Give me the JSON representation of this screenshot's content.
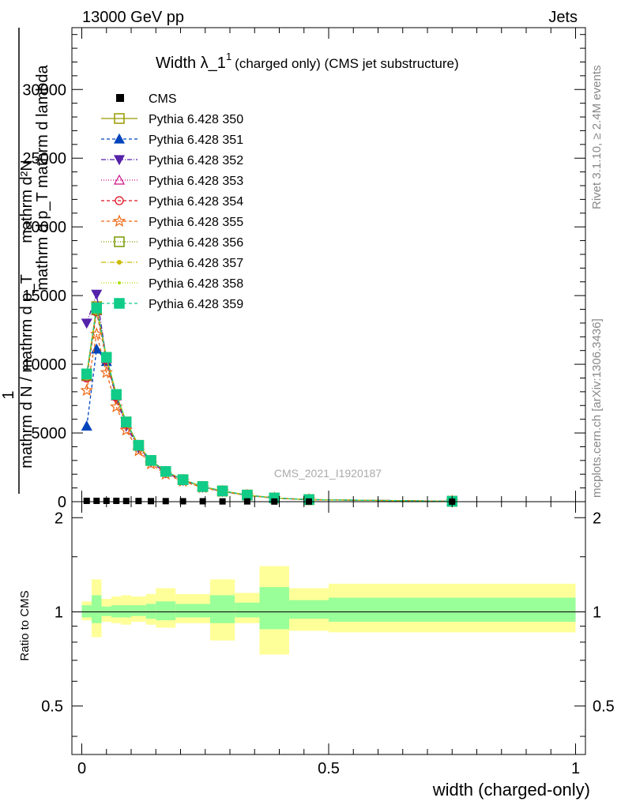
{
  "header": {
    "left": "13000 GeV pp",
    "right": "Jets"
  },
  "side_labels": {
    "rivet": "Rivet 3.1.10, ≥ 2.4M events",
    "mcplots": "mcplots.cern.ch [arXiv:1306.3436]"
  },
  "watermark": "CMS_2021_I1920187",
  "colors": {
    "band_inner": "#99ff99",
    "band_outer": "#ffff99"
  },
  "chart_data": {
    "type": "line",
    "title_main": "Width λ_1",
    "title_sup": "1",
    "title_rest": "(charged only) (CMS jet substructure)",
    "xlabel": "width (charged-only)",
    "ylabel_top": {
      "one": "1",
      "numerator": "mathrm d²N",
      "denominator": "mathrm d N / mathrm d p_T",
      "lambda": "mathrm d p_T mathrm d lambda"
    },
    "ratio_ylabel": "Ratio to CMS",
    "xlim": [
      -0.02,
      1.02
    ],
    "ylim": [
      0,
      34500
    ],
    "ratio_ylim": [
      0.35,
      2.25
    ],
    "x_ticks": [
      {
        "value": 0,
        "label": "0"
      },
      {
        "value": 0.5,
        "label": "0.5"
      },
      {
        "value": 1,
        "label": "1"
      }
    ],
    "y_ticks": [
      {
        "value": 0,
        "label": "0"
      },
      {
        "value": 5000,
        "label": "5000"
      },
      {
        "value": 10000,
        "label": "10000"
      },
      {
        "value": 15000,
        "label": "15000"
      },
      {
        "value": 20000,
        "label": "20000"
      },
      {
        "value": 25000,
        "label": "25000"
      },
      {
        "value": 30000,
        "label": "30000"
      }
    ],
    "ratio_ticks": [
      {
        "value": 0.5,
        "label": "0.5"
      },
      {
        "value": 1,
        "label": "1"
      },
      {
        "value": 2,
        "label": "2"
      }
    ],
    "legend_placement": "top-left",
    "cms": {
      "name": "CMS",
      "x": [
        0.01,
        0.03,
        0.05,
        0.07,
        0.09,
        0.115,
        0.14,
        0.17,
        0.205,
        0.245,
        0.285,
        0.335,
        0.39,
        0.46,
        0.75
      ],
      "y": [
        60,
        60,
        60,
        60,
        50,
        50,
        40,
        40,
        30,
        30,
        20,
        20,
        10,
        10,
        5
      ]
    },
    "ratio_bands": {
      "edges": [
        0,
        0.02,
        0.04,
        0.06,
        0.08,
        0.1,
        0.13,
        0.15,
        0.19,
        0.22,
        0.26,
        0.31,
        0.36,
        0.42,
        0.5,
        1.0
      ],
      "inner": [
        [
          0.96,
          1.05
        ],
        [
          0.92,
          1.13
        ],
        [
          0.97,
          1.04
        ],
        [
          0.96,
          1.05
        ],
        [
          0.96,
          1.05
        ],
        [
          0.97,
          1.05
        ],
        [
          0.95,
          1.06
        ],
        [
          0.94,
          1.08
        ],
        [
          0.96,
          1.06
        ],
        [
          0.96,
          1.06
        ],
        [
          0.92,
          1.13
        ],
        [
          0.96,
          1.07
        ],
        [
          0.88,
          1.2
        ],
        [
          0.95,
          1.09
        ],
        [
          0.93,
          1.11
        ]
      ],
      "outer": [
        [
          0.94,
          1.08
        ],
        [
          0.83,
          1.27
        ],
        [
          0.93,
          1.1
        ],
        [
          0.92,
          1.12
        ],
        [
          0.91,
          1.13
        ],
        [
          0.93,
          1.12
        ],
        [
          0.91,
          1.14
        ],
        [
          0.89,
          1.19
        ],
        [
          0.92,
          1.14
        ],
        [
          0.92,
          1.14
        ],
        [
          0.81,
          1.27
        ],
        [
          0.92,
          1.15
        ],
        [
          0.73,
          1.4
        ],
        [
          0.87,
          1.19
        ],
        [
          0.86,
          1.23
        ]
      ]
    },
    "series": [
      {
        "name": "Pythia 6.428 350",
        "color": "#999900",
        "dash": "",
        "marker": "square-open",
        "x": [
          0.01,
          0.03,
          0.05,
          0.07,
          0.09,
          0.115,
          0.14,
          0.17,
          0.205,
          0.245,
          0.285,
          0.335,
          0.39,
          0.46,
          0.75
        ],
        "y": [
          9300,
          14200,
          10500,
          7800,
          5800,
          4100,
          3000,
          2200,
          1600,
          1100,
          780,
          480,
          270,
          150,
          30
        ]
      },
      {
        "name": "Pythia 6.428 351",
        "color": "#0044bb",
        "dash": "4,3",
        "marker": "triangle-up-filled",
        "x": [
          0.01,
          0.03,
          0.05,
          0.07,
          0.09,
          0.115,
          0.14,
          0.17,
          0.205,
          0.245,
          0.285,
          0.335,
          0.39,
          0.46,
          0.75
        ],
        "y": [
          5500,
          11100,
          10200,
          7700,
          5700,
          4100,
          3000,
          2200,
          1600,
          1100,
          780,
          480,
          270,
          150,
          30
        ]
      },
      {
        "name": "Pythia 6.428 352",
        "color": "#5522aa",
        "dash": "6,2,1,2",
        "marker": "triangle-down-filled",
        "x": [
          0.01,
          0.03,
          0.05,
          0.07,
          0.09,
          0.115,
          0.14,
          0.17,
          0.205,
          0.245,
          0.285,
          0.335,
          0.39,
          0.46,
          0.75
        ],
        "y": [
          13000,
          15100,
          10300,
          7500,
          5500,
          3900,
          2900,
          2100,
          1550,
          1050,
          750,
          460,
          260,
          145,
          30
        ]
      },
      {
        "name": "Pythia 6.428 353",
        "color": "#cc1188",
        "dash": "1,2",
        "marker": "triangle-up-open",
        "x": [
          0.01,
          0.03,
          0.05,
          0.07,
          0.09,
          0.115,
          0.14,
          0.17,
          0.205,
          0.245,
          0.285,
          0.335,
          0.39,
          0.46,
          0.75
        ],
        "y": [
          9100,
          13900,
          10400,
          7700,
          5700,
          4050,
          2950,
          2150,
          1580,
          1080,
          770,
          470,
          265,
          148,
          30
        ]
      },
      {
        "name": "Pythia 6.428 354",
        "color": "#dd1122",
        "dash": "4,3",
        "marker": "circle-open",
        "x": [
          0.01,
          0.03,
          0.05,
          0.07,
          0.09,
          0.115,
          0.14,
          0.17,
          0.205,
          0.245,
          0.285,
          0.335,
          0.39,
          0.46,
          0.75
        ],
        "y": [
          9000,
          13800,
          10300,
          7600,
          5650,
          4000,
          2950,
          2150,
          1570,
          1080,
          770,
          470,
          265,
          148,
          30
        ]
      },
      {
        "name": "Pythia 6.428 355",
        "color": "#ee6611",
        "dash": "4,3",
        "marker": "star-open",
        "x": [
          0.01,
          0.03,
          0.05,
          0.07,
          0.09,
          0.115,
          0.14,
          0.17,
          0.205,
          0.245,
          0.285,
          0.335,
          0.39,
          0.46,
          0.75
        ],
        "y": [
          8100,
          12200,
          9400,
          6900,
          5200,
          3700,
          2750,
          2000,
          1480,
          1020,
          730,
          450,
          255,
          142,
          28
        ]
      },
      {
        "name": "Pythia 6.428 356",
        "color": "#779900",
        "dash": "1,2",
        "marker": "square-open",
        "x": [
          0.01,
          0.03,
          0.05,
          0.07,
          0.09,
          0.115,
          0.14,
          0.17,
          0.205,
          0.245,
          0.285,
          0.335,
          0.39,
          0.46,
          0.75
        ],
        "y": [
          9200,
          14000,
          10500,
          7800,
          5800,
          4100,
          3000,
          2200,
          1600,
          1100,
          780,
          480,
          270,
          150,
          30
        ]
      },
      {
        "name": "Pythia 6.428 357",
        "color": "#ccbb00",
        "dash": "6,2,1,2",
        "marker": "small-filled",
        "x": [
          0.01,
          0.03,
          0.05,
          0.07,
          0.09,
          0.115,
          0.14,
          0.17,
          0.205,
          0.245,
          0.285,
          0.335,
          0.39,
          0.46,
          0.75
        ],
        "y": [
          9200,
          14000,
          10400,
          7700,
          5750,
          4080,
          2980,
          2180,
          1590,
          1090,
          775,
          475,
          268,
          149,
          30
        ]
      },
      {
        "name": "Pythia 6.428 358",
        "color": "#aadd00",
        "dash": "1,2",
        "marker": "dot",
        "x": [
          0.01,
          0.03,
          0.05,
          0.07,
          0.09,
          0.115,
          0.14,
          0.17,
          0.205,
          0.245,
          0.285,
          0.335,
          0.39,
          0.46,
          0.75
        ],
        "y": [
          9200,
          14100,
          10500,
          7800,
          5800,
          4100,
          3000,
          2200,
          1600,
          1100,
          780,
          480,
          270,
          150,
          30
        ]
      },
      {
        "name": "Pythia 6.428 359",
        "color": "#11cc88",
        "dash": "4,3",
        "marker": "square-filled",
        "x": [
          0.01,
          0.03,
          0.05,
          0.07,
          0.09,
          0.115,
          0.14,
          0.17,
          0.205,
          0.245,
          0.285,
          0.335,
          0.39,
          0.46,
          0.75
        ],
        "y": [
          9300,
          14100,
          10500,
          7800,
          5800,
          4100,
          3000,
          2200,
          1600,
          1100,
          780,
          480,
          270,
          150,
          30
        ]
      }
    ]
  }
}
